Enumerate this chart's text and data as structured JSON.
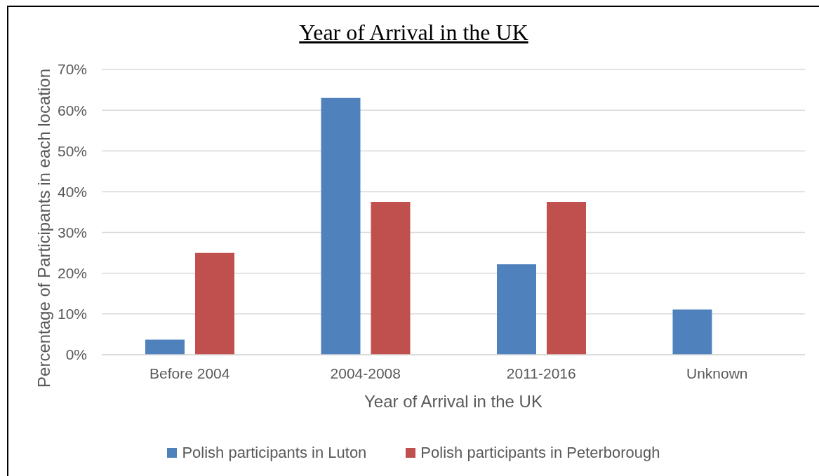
{
  "chart_data": {
    "type": "bar",
    "title": "Year of Arrival in the UK",
    "xlabel": "Year of Arrival in the UK",
    "ylabel": "Percentage of Participants in each location",
    "categories": [
      "Before 2004",
      "2004-2008",
      "2011-2016",
      "Unknown"
    ],
    "series": [
      {
        "name": "Polish participants in Luton",
        "color": "#4f81bd",
        "values": [
          3.7,
          63,
          22.2,
          11.1
        ]
      },
      {
        "name": "Polish participants in Peterborough",
        "color": "#c0504d",
        "values": [
          25,
          37.5,
          37.5,
          0
        ]
      }
    ],
    "ylim": [
      0,
      70
    ],
    "yticks": [
      {
        "value": 0,
        "label": "0%"
      },
      {
        "value": 10,
        "label": "10%"
      },
      {
        "value": 20,
        "label": "20%"
      },
      {
        "value": 30,
        "label": "30%"
      },
      {
        "value": 40,
        "label": "40%"
      },
      {
        "value": 50,
        "label": "50%"
      },
      {
        "value": 60,
        "label": "60%"
      },
      {
        "value": 70,
        "label": "70%"
      }
    ],
    "grid": "y",
    "legend": "bottom"
  }
}
